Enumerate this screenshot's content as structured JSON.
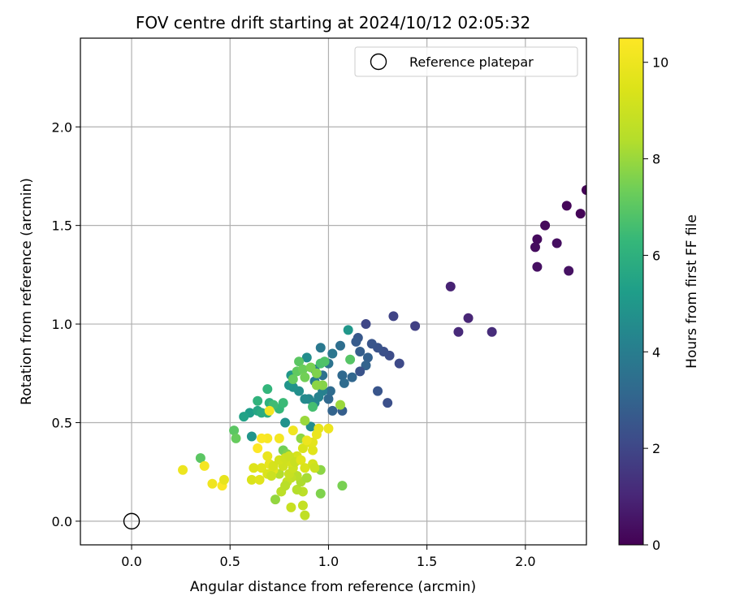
{
  "chart_data": {
    "type": "scatter",
    "title": "FOV centre drift starting at 2024/10/12 02:05:32",
    "xlabel": "Angular distance from reference (arcmin)",
    "ylabel": "Rotation from reference (arcmin)",
    "xlim": [
      -0.26,
      2.31
    ],
    "ylim": [
      -0.12,
      2.45
    ],
    "xticks": [
      0.0,
      0.5,
      1.0,
      1.5,
      2.0
    ],
    "xtick_labels": [
      "0.0",
      "0.5",
      "1.0",
      "1.5",
      "2.0"
    ],
    "yticks": [
      0.0,
      0.5,
      1.0,
      1.5,
      2.0
    ],
    "ytick_labels": [
      "0.0",
      "0.5",
      "1.0",
      "1.5",
      "2.0"
    ],
    "grid": true,
    "legend": {
      "placement": "top-right",
      "entries": [
        {
          "label": "Reference platepar",
          "marker": "open-circle",
          "color": "#000000"
        }
      ]
    },
    "reference_point": {
      "x": 0.0,
      "y": 0.0
    },
    "colorbar": {
      "label": "Hours from first FF file",
      "colormap": "viridis",
      "range": [
        0,
        10.5
      ],
      "ticks": [
        0,
        2,
        4,
        6,
        8,
        10
      ],
      "tick_labels": [
        "0",
        "2",
        "4",
        "6",
        "8",
        "10"
      ]
    },
    "series": [
      {
        "points": [
          {
            "x": 2.31,
            "y": 1.68,
            "c": 0.05
          },
          {
            "x": 2.28,
            "y": 1.56,
            "c": 0.1
          },
          {
            "x": 2.21,
            "y": 1.6,
            "c": 0.15
          },
          {
            "x": 2.1,
            "y": 1.5,
            "c": 0.2
          },
          {
            "x": 2.06,
            "y": 1.43,
            "c": 0.25
          },
          {
            "x": 2.05,
            "y": 1.39,
            "c": 0.3
          },
          {
            "x": 2.16,
            "y": 1.41,
            "c": 0.35
          },
          {
            "x": 2.06,
            "y": 1.29,
            "c": 0.4
          },
          {
            "x": 2.22,
            "y": 1.27,
            "c": 0.45
          },
          {
            "x": 1.62,
            "y": 1.19,
            "c": 0.9
          },
          {
            "x": 1.71,
            "y": 1.03,
            "c": 1.0
          },
          {
            "x": 1.66,
            "y": 0.96,
            "c": 1.1
          },
          {
            "x": 1.83,
            "y": 0.96,
            "c": 1.2
          },
          {
            "x": 1.44,
            "y": 0.99,
            "c": 1.8
          },
          {
            "x": 1.33,
            "y": 1.04,
            "c": 1.9
          },
          {
            "x": 1.19,
            "y": 1.0,
            "c": 2.0
          },
          {
            "x": 1.36,
            "y": 0.8,
            "c": 2.1
          },
          {
            "x": 1.31,
            "y": 0.84,
            "c": 2.2
          },
          {
            "x": 1.28,
            "y": 0.86,
            "c": 2.3
          },
          {
            "x": 1.25,
            "y": 0.88,
            "c": 2.4
          },
          {
            "x": 1.22,
            "y": 0.9,
            "c": 2.5
          },
          {
            "x": 1.15,
            "y": 0.93,
            "c": 2.6
          },
          {
            "x": 1.14,
            "y": 0.91,
            "c": 2.7
          },
          {
            "x": 1.16,
            "y": 0.86,
            "c": 2.8
          },
          {
            "x": 1.2,
            "y": 0.83,
            "c": 2.9
          },
          {
            "x": 1.19,
            "y": 0.79,
            "c": 3.0
          },
          {
            "x": 1.12,
            "y": 0.73,
            "c": 3.1
          },
          {
            "x": 1.07,
            "y": 0.74,
            "c": 3.2
          },
          {
            "x": 1.08,
            "y": 0.7,
            "c": 3.3
          },
          {
            "x": 1.06,
            "y": 0.89,
            "c": 3.4
          },
          {
            "x": 1.16,
            "y": 0.76,
            "c": 2.4
          },
          {
            "x": 1.25,
            "y": 0.66,
            "c": 2.5
          },
          {
            "x": 1.3,
            "y": 0.6,
            "c": 2.3
          },
          {
            "x": 1.07,
            "y": 0.56,
            "c": 2.8
          },
          {
            "x": 1.02,
            "y": 0.56,
            "c": 3.0
          },
          {
            "x": 1.0,
            "y": 0.62,
            "c": 3.2
          },
          {
            "x": 1.01,
            "y": 0.66,
            "c": 3.3
          },
          {
            "x": 0.97,
            "y": 0.74,
            "c": 3.5
          },
          {
            "x": 1.0,
            "y": 0.8,
            "c": 3.6
          },
          {
            "x": 1.02,
            "y": 0.85,
            "c": 3.7
          },
          {
            "x": 0.96,
            "y": 0.88,
            "c": 3.8
          },
          {
            "x": 0.93,
            "y": 0.77,
            "c": 3.9
          },
          {
            "x": 0.93,
            "y": 0.71,
            "c": 4.0
          },
          {
            "x": 0.97,
            "y": 0.66,
            "c": 4.1
          },
          {
            "x": 0.95,
            "y": 0.63,
            "c": 4.2
          },
          {
            "x": 0.93,
            "y": 0.6,
            "c": 4.3
          },
          {
            "x": 0.9,
            "y": 0.62,
            "c": 4.4
          },
          {
            "x": 0.88,
            "y": 0.62,
            "c": 4.5
          },
          {
            "x": 0.89,
            "y": 0.83,
            "c": 4.6
          },
          {
            "x": 0.85,
            "y": 0.66,
            "c": 4.7
          },
          {
            "x": 0.82,
            "y": 0.68,
            "c": 4.8
          },
          {
            "x": 0.8,
            "y": 0.69,
            "c": 4.9
          },
          {
            "x": 0.81,
            "y": 0.74,
            "c": 5.0
          },
          {
            "x": 0.91,
            "y": 0.48,
            "c": 4.6
          },
          {
            "x": 0.78,
            "y": 0.5,
            "c": 4.8
          },
          {
            "x": 0.61,
            "y": 0.43,
            "c": 4.9
          },
          {
            "x": 0.6,
            "y": 0.55,
            "c": 5.2
          },
          {
            "x": 0.57,
            "y": 0.53,
            "c": 5.4
          },
          {
            "x": 0.64,
            "y": 0.56,
            "c": 5.6
          },
          {
            "x": 0.66,
            "y": 0.55,
            "c": 5.8
          },
          {
            "x": 0.69,
            "y": 0.55,
            "c": 5.9
          },
          {
            "x": 0.7,
            "y": 0.6,
            "c": 6.0
          },
          {
            "x": 0.64,
            "y": 0.61,
            "c": 6.1
          },
          {
            "x": 0.69,
            "y": 0.67,
            "c": 6.2
          },
          {
            "x": 0.75,
            "y": 0.57,
            "c": 6.3
          },
          {
            "x": 0.77,
            "y": 0.6,
            "c": 6.4
          },
          {
            "x": 0.72,
            "y": 0.59,
            "c": 6.5
          },
          {
            "x": 0.92,
            "y": 0.58,
            "c": 6.6
          },
          {
            "x": 0.96,
            "y": 0.8,
            "c": 6.7
          },
          {
            "x": 0.98,
            "y": 0.81,
            "c": 6.8
          },
          {
            "x": 1.1,
            "y": 0.97,
            "c": 5.0
          },
          {
            "x": 1.11,
            "y": 0.82,
            "c": 6.9
          },
          {
            "x": 0.85,
            "y": 0.81,
            "c": 7.0
          },
          {
            "x": 0.84,
            "y": 0.76,
            "c": 7.1
          },
          {
            "x": 0.82,
            "y": 0.72,
            "c": 7.2
          },
          {
            "x": 0.87,
            "y": 0.77,
            "c": 7.3
          },
          {
            "x": 0.88,
            "y": 0.73,
            "c": 7.4
          },
          {
            "x": 0.91,
            "y": 0.78,
            "c": 7.5
          },
          {
            "x": 0.94,
            "y": 0.75,
            "c": 7.6
          },
          {
            "x": 0.97,
            "y": 0.69,
            "c": 7.7
          },
          {
            "x": 0.94,
            "y": 0.69,
            "c": 7.8
          },
          {
            "x": 0.52,
            "y": 0.46,
            "c": 7.0
          },
          {
            "x": 0.53,
            "y": 0.42,
            "c": 7.2
          },
          {
            "x": 0.35,
            "y": 0.32,
            "c": 7.0
          },
          {
            "x": 0.77,
            "y": 0.36,
            "c": 7.4
          },
          {
            "x": 0.79,
            "y": 0.34,
            "c": 7.6
          },
          {
            "x": 0.86,
            "y": 0.42,
            "c": 7.8
          },
          {
            "x": 0.88,
            "y": 0.51,
            "c": 8.0
          },
          {
            "x": 0.96,
            "y": 0.26,
            "c": 7.8
          },
          {
            "x": 0.96,
            "y": 0.14,
            "c": 7.6
          },
          {
            "x": 1.07,
            "y": 0.18,
            "c": 7.5
          },
          {
            "x": 1.06,
            "y": 0.59,
            "c": 8.0
          },
          {
            "x": 0.73,
            "y": 0.11,
            "c": 7.9
          },
          {
            "x": 0.88,
            "y": 0.03,
            "c": 8.7
          },
          {
            "x": 0.87,
            "y": 0.08,
            "c": 8.8
          },
          {
            "x": 0.81,
            "y": 0.07,
            "c": 8.9
          },
          {
            "x": 0.87,
            "y": 0.15,
            "c": 8.6
          },
          {
            "x": 0.84,
            "y": 0.16,
            "c": 8.4
          },
          {
            "x": 0.86,
            "y": 0.2,
            "c": 8.3
          },
          {
            "x": 0.89,
            "y": 0.22,
            "c": 8.2
          },
          {
            "x": 0.84,
            "y": 0.23,
            "c": 8.5
          },
          {
            "x": 0.81,
            "y": 0.22,
            "c": 8.7
          },
          {
            "x": 0.79,
            "y": 0.2,
            "c": 8.8
          },
          {
            "x": 0.8,
            "y": 0.24,
            "c": 8.9
          },
          {
            "x": 0.82,
            "y": 0.27,
            "c": 9.0
          },
          {
            "x": 0.76,
            "y": 0.15,
            "c": 8.6
          },
          {
            "x": 0.78,
            "y": 0.18,
            "c": 8.5
          },
          {
            "x": 0.75,
            "y": 0.24,
            "c": 8.4
          },
          {
            "x": 0.77,
            "y": 0.28,
            "c": 9.1
          },
          {
            "x": 0.81,
            "y": 0.3,
            "c": 9.2
          },
          {
            "x": 0.84,
            "y": 0.33,
            "c": 9.3
          },
          {
            "x": 0.87,
            "y": 0.37,
            "c": 9.4
          },
          {
            "x": 0.9,
            "y": 0.4,
            "c": 9.5
          },
          {
            "x": 0.92,
            "y": 0.36,
            "c": 9.6
          },
          {
            "x": 0.92,
            "y": 0.4,
            "c": 9.7
          },
          {
            "x": 0.95,
            "y": 0.47,
            "c": 9.8
          },
          {
            "x": 0.94,
            "y": 0.44,
            "c": 9.9
          },
          {
            "x": 0.89,
            "y": 0.41,
            "c": 10.0
          },
          {
            "x": 0.82,
            "y": 0.46,
            "c": 10.1
          },
          {
            "x": 0.75,
            "y": 0.42,
            "c": 10.2
          },
          {
            "x": 0.69,
            "y": 0.42,
            "c": 10.3
          },
          {
            "x": 0.66,
            "y": 0.42,
            "c": 10.4
          },
          {
            "x": 0.64,
            "y": 0.37,
            "c": 10.5
          },
          {
            "x": 0.7,
            "y": 0.56,
            "c": 10.2
          },
          {
            "x": 1.0,
            "y": 0.47,
            "c": 10.0
          },
          {
            "x": 0.69,
            "y": 0.33,
            "c": 9.9
          },
          {
            "x": 0.7,
            "y": 0.29,
            "c": 9.8
          },
          {
            "x": 0.72,
            "y": 0.26,
            "c": 9.7
          },
          {
            "x": 0.66,
            "y": 0.27,
            "c": 9.6
          },
          {
            "x": 0.62,
            "y": 0.27,
            "c": 9.5
          },
          {
            "x": 0.69,
            "y": 0.24,
            "c": 9.4
          },
          {
            "x": 0.72,
            "y": 0.28,
            "c": 9.3
          },
          {
            "x": 0.75,
            "y": 0.31,
            "c": 9.2
          },
          {
            "x": 0.78,
            "y": 0.32,
            "c": 9.1
          },
          {
            "x": 0.8,
            "y": 0.33,
            "c": 9.0
          },
          {
            "x": 0.83,
            "y": 0.3,
            "c": 8.9
          },
          {
            "x": 0.86,
            "y": 0.31,
            "c": 9.6
          },
          {
            "x": 0.88,
            "y": 0.27,
            "c": 9.4
          },
          {
            "x": 0.92,
            "y": 0.29,
            "c": 9.2
          },
          {
            "x": 0.93,
            "y": 0.27,
            "c": 9.0
          },
          {
            "x": 0.61,
            "y": 0.21,
            "c": 9.4
          },
          {
            "x": 0.65,
            "y": 0.21,
            "c": 9.6
          },
          {
            "x": 0.71,
            "y": 0.23,
            "c": 9.0
          },
          {
            "x": 0.26,
            "y": 0.26,
            "c": 10.0
          },
          {
            "x": 0.37,
            "y": 0.28,
            "c": 10.2
          },
          {
            "x": 0.41,
            "y": 0.19,
            "c": 10.1
          },
          {
            "x": 0.46,
            "y": 0.18,
            "c": 10.4
          },
          {
            "x": 0.47,
            "y": 0.21,
            "c": 9.8
          }
        ]
      }
    ]
  }
}
